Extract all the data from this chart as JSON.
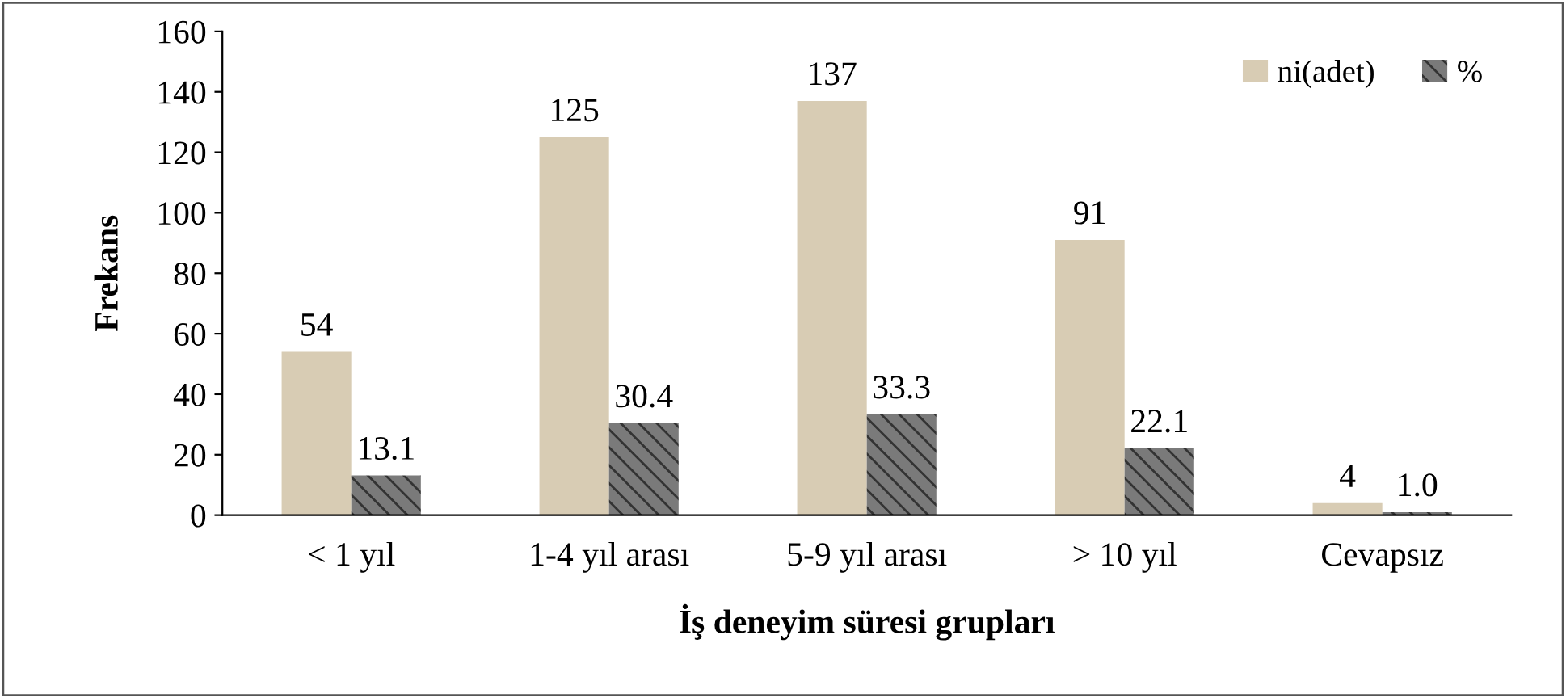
{
  "chart_data": {
    "type": "bar",
    "xlabel": "İş deneyim süresi grupları",
    "ylabel": "Frekans",
    "categories": [
      "< 1 yıl",
      "1-4 yıl arası",
      "5-9 yıl arası",
      "> 10 yıl",
      "Cevapsız"
    ],
    "series": [
      {
        "name": "ni(adet)",
        "color": "#d8ccb4",
        "values": [
          54,
          125,
          137,
          91,
          4
        ],
        "value_labels": [
          "54",
          "125",
          "137",
          "91",
          "4"
        ]
      },
      {
        "name": "%",
        "color": "#7a7a7a",
        "values": [
          13.1,
          30.4,
          33.3,
          22.1,
          1.0
        ],
        "value_labels": [
          "13.1",
          "30.4",
          "33.3",
          "22.1",
          "1.0"
        ]
      }
    ],
    "ylim": [
      0,
      160
    ],
    "yticks": [
      0,
      20,
      40,
      60,
      80,
      100,
      120,
      140,
      160
    ],
    "grid": false,
    "legend": "top right"
  }
}
